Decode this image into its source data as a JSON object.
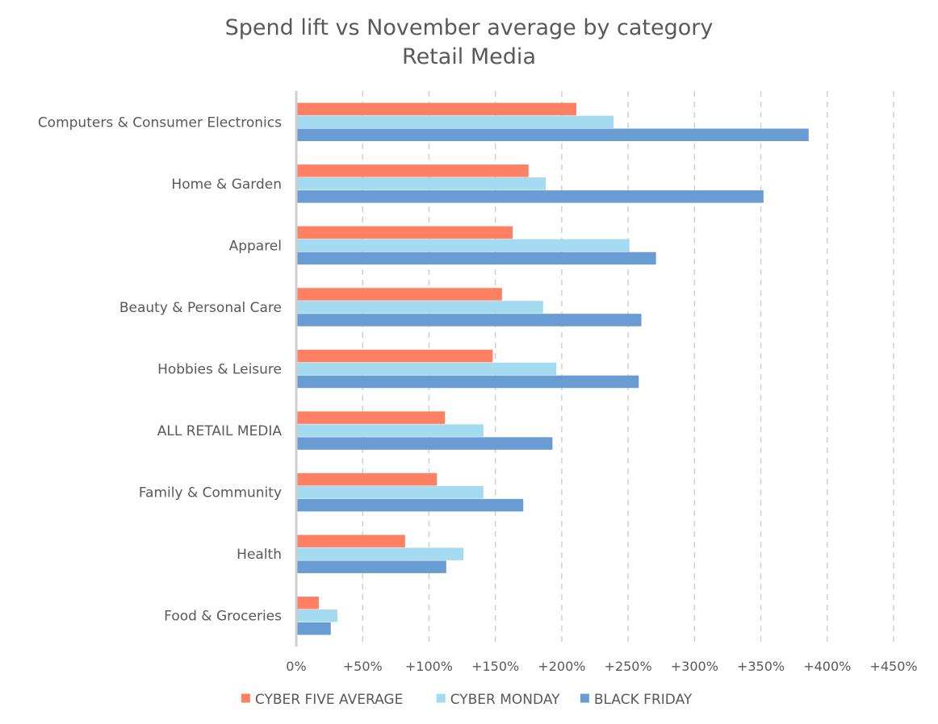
{
  "chart_data": {
    "type": "bar",
    "orientation": "horizontal",
    "title": "Spend lift vs November average by category",
    "subtitle": "Retail Media",
    "xlim": [
      0,
      450
    ],
    "grid": true,
    "legend_position": "bottom",
    "tick_values": [
      0,
      50,
      100,
      150,
      200,
      250,
      300,
      350,
      400,
      450
    ],
    "tick_labels": [
      "0%",
      "+50%",
      "+100%",
      "+150%",
      "+200%",
      "+250%",
      "+300%",
      "+350%",
      "+400%",
      "+450%"
    ],
    "categories": [
      "Computers & Consumer Electronics",
      "Home & Garden",
      "Apparel",
      "Beauty & Personal Care",
      "Hobbies & Leisure",
      "ALL RETAIL MEDIA",
      "Family & Community",
      "Health",
      "Food & Groceries"
    ],
    "series": [
      {
        "name": "CYBER FIVE AVERAGE",
        "color": "#FF8062",
        "values": [
          211,
          175,
          163,
          155,
          148,
          112,
          106,
          82,
          17
        ]
      },
      {
        "name": "CYBER MONDAY",
        "color": "#A5DBF0",
        "values": [
          239,
          188,
          251,
          186,
          196,
          141,
          141,
          126,
          31
        ]
      },
      {
        "name": "BLACK FRIDAY",
        "color": "#6A9CD4",
        "values": [
          386,
          352,
          271,
          260,
          258,
          193,
          171,
          113,
          26
        ]
      }
    ]
  }
}
